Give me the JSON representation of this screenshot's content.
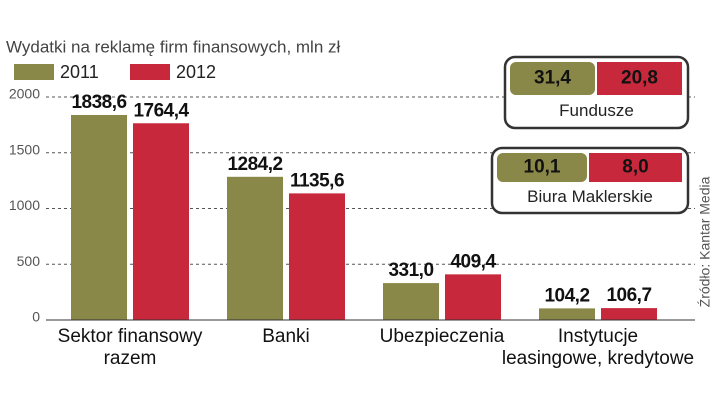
{
  "chart_data": {
    "type": "bar",
    "title": "Wydatki na reklamę firm finansowych, mln zł",
    "categories": [
      "Sektor finansowy\nrazem",
      "Banki",
      "Ubezpieczenia",
      "Instytucje\nleasingowe, kredytowe"
    ],
    "series": [
      {
        "name": "2011",
        "color": "#8a8848",
        "values": [
          1838.6,
          1284.2,
          331.0,
          104.2
        ],
        "value_labels": [
          "1838,6",
          "1284,2",
          "331,0",
          "104,2"
        ]
      },
      {
        "name": "2012",
        "color": "#c8283c",
        "values": [
          1764.4,
          1135.6,
          409.4,
          106.7
        ],
        "value_labels": [
          "1764,4",
          "1135,6",
          "409,4",
          "106,7"
        ]
      }
    ],
    "ylim": [
      0,
      2000
    ],
    "yticks": [
      0,
      500,
      1000,
      1500,
      2000
    ],
    "grid": true,
    "insets": [
      {
        "label": "Fundusze",
        "values": [
          31.4,
          20.8
        ],
        "value_labels": [
          "31,4",
          "20,8"
        ]
      },
      {
        "label": "Biura Maklerskie",
        "values": [
          10.1,
          8.0
        ],
        "value_labels": [
          "10,1",
          "8,0"
        ]
      }
    ],
    "source": "Źródło: Kantar Media"
  }
}
